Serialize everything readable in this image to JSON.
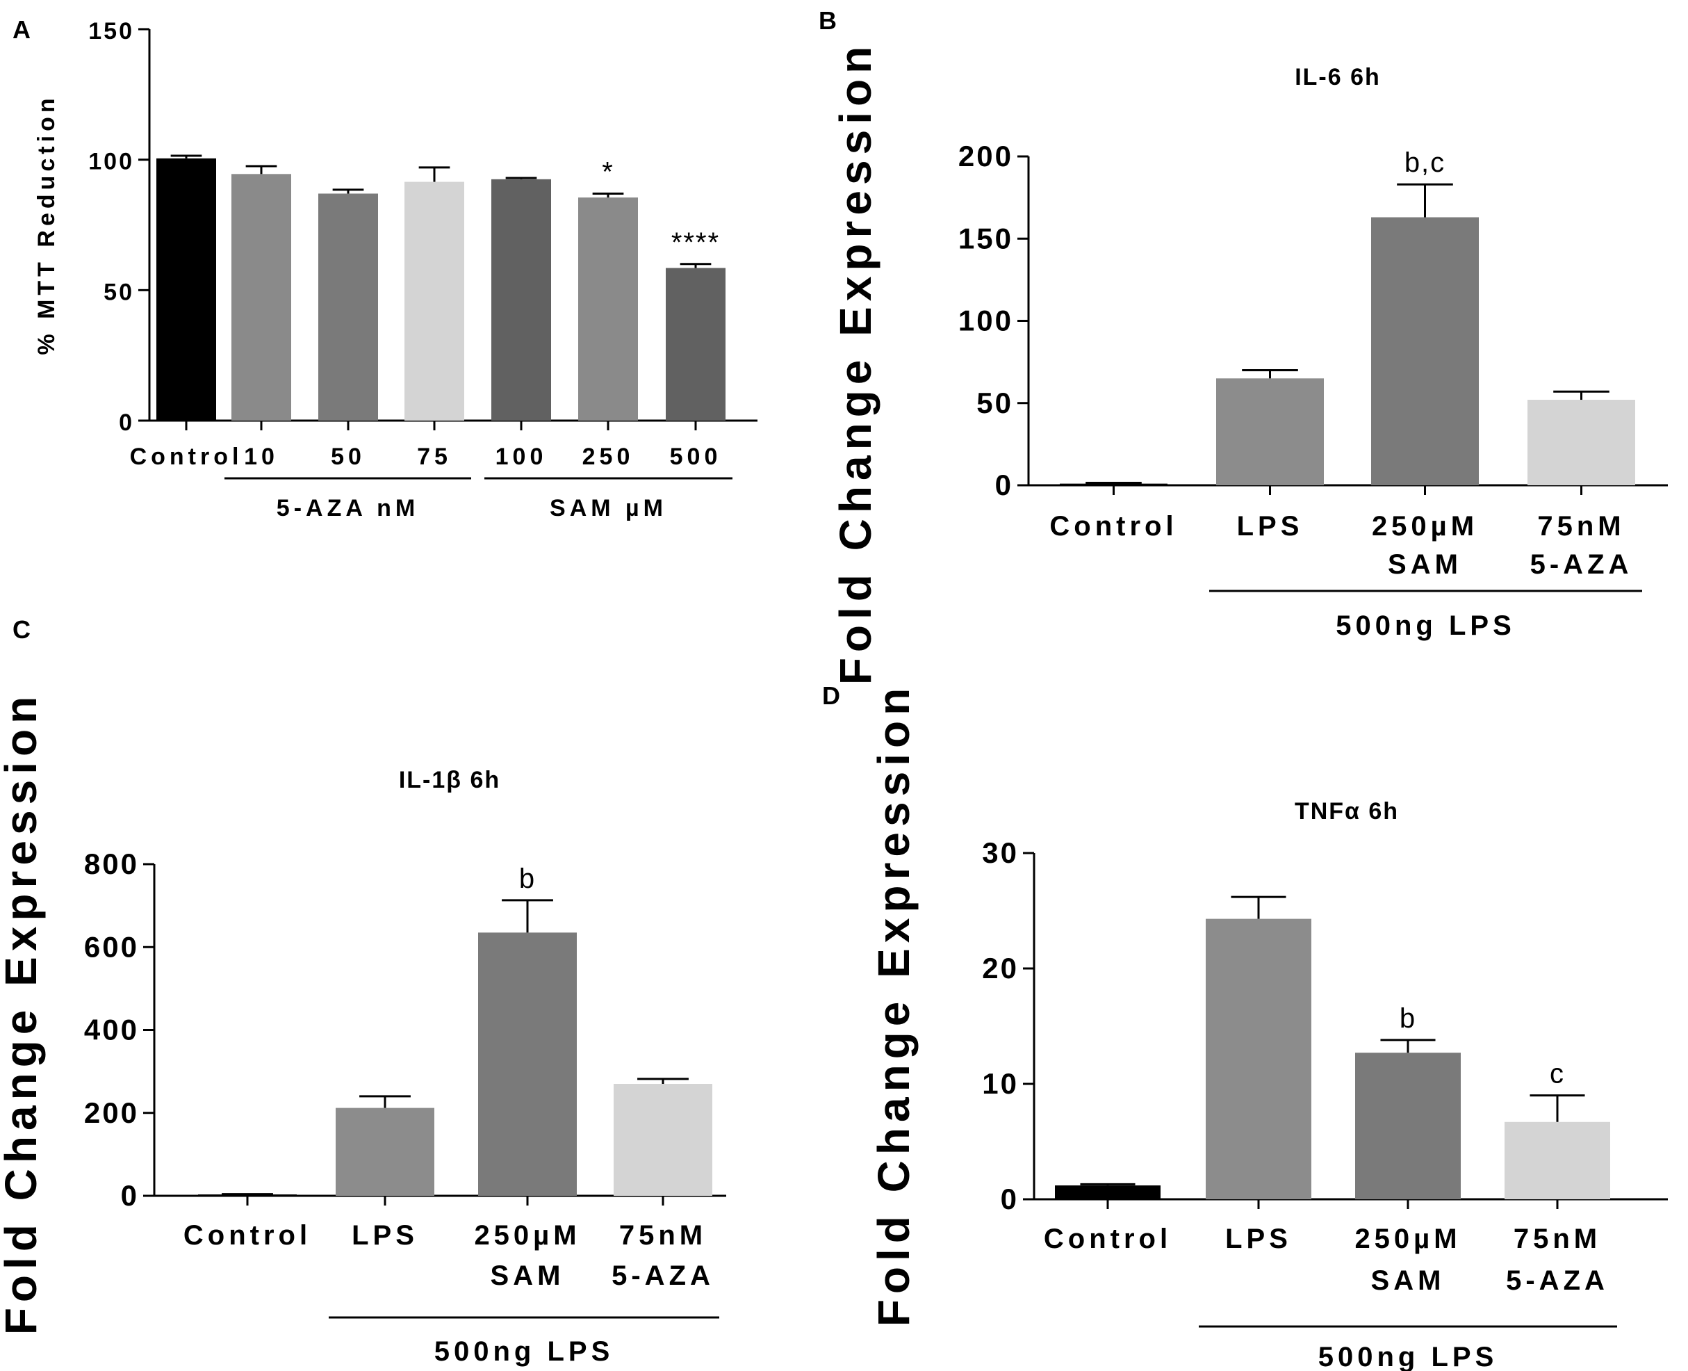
{
  "chart_data": [
    {
      "panel": "A",
      "type": "bar",
      "title": "",
      "xlabel": "",
      "ylabel": "% MTT Reduction",
      "ylim": [
        0,
        150
      ],
      "yticks": [
        "0",
        "50",
        "100",
        "150"
      ],
      "categories": [
        "Control",
        "10",
        "50",
        "75",
        "100",
        "250",
        "500"
      ],
      "values": [
        100.5,
        94.5,
        87,
        91.5,
        92.5,
        85.5,
        58.5
      ],
      "errors": [
        1,
        3,
        1.5,
        5.5,
        0.5,
        1.5,
        1.5
      ],
      "colors": [
        "#000000",
        "#8a8a8a",
        "#7a7a7a",
        "#d4d4d4",
        "#616161",
        "#8a8a8a",
        "#616161"
      ],
      "annotations": [
        "",
        "",
        "",
        "",
        "",
        "*",
        "****"
      ],
      "groups": [
        {
          "label": "5-AZA nM",
          "from": 1,
          "to": 3
        },
        {
          "label": "SAM µM",
          "from": 4,
          "to": 6
        }
      ]
    },
    {
      "panel": "B",
      "type": "bar",
      "title": "IL-6 6h",
      "xlabel": "",
      "ylabel": "Fold Change Expression",
      "ylim": [
        0,
        200
      ],
      "yticks": [
        "0",
        "50",
        "100",
        "150",
        "200"
      ],
      "categories": [
        [
          "Control"
        ],
        [
          "LPS"
        ],
        [
          "250µM",
          "SAM"
        ],
        [
          "75nM",
          "5-AZA"
        ]
      ],
      "values": [
        1,
        65,
        163,
        52
      ],
      "errors": [
        0.5,
        5,
        20,
        5
      ],
      "colors": [
        "#000000",
        "#8c8c8c",
        "#7a7a7a",
        "#d4d4d4"
      ],
      "annotations": [
        "",
        "",
        "b,c",
        ""
      ],
      "groups": [
        {
          "label": "500ng LPS",
          "from": 1,
          "to": 3
        }
      ]
    },
    {
      "panel": "C",
      "type": "bar",
      "title": "IL-1β 6h",
      "xlabel": "",
      "ylabel": "Fold Change Expression",
      "ylim": [
        0,
        800
      ],
      "yticks": [
        "0",
        "200",
        "400",
        "600",
        "800"
      ],
      "categories": [
        [
          "Control"
        ],
        [
          "LPS"
        ],
        [
          "250µM",
          "SAM"
        ],
        [
          "75nM",
          "5-AZA"
        ]
      ],
      "values": [
        3,
        212,
        635,
        270
      ],
      "errors": [
        1,
        28,
        78,
        12
      ],
      "colors": [
        "#000000",
        "#8c8c8c",
        "#7a7a7a",
        "#d4d4d4"
      ],
      "annotations": [
        "",
        "",
        "b",
        ""
      ],
      "groups": [
        {
          "label": "500ng LPS",
          "from": 1,
          "to": 3
        }
      ]
    },
    {
      "panel": "D",
      "type": "bar",
      "title": "TNFα 6h",
      "xlabel": "",
      "ylabel": "Fold Change Expression",
      "ylim": [
        0,
        30
      ],
      "yticks": [
        "0",
        "10",
        "20",
        "30"
      ],
      "categories": [
        [
          "Control"
        ],
        [
          "LPS"
        ],
        [
          "250µM",
          "SAM"
        ],
        [
          "75nM",
          "5-AZA"
        ]
      ],
      "values": [
        1.2,
        24.3,
        12.7,
        6.7
      ],
      "errors": [
        0.1,
        1.9,
        1.1,
        2.3
      ],
      "colors": [
        "#000000",
        "#8c8c8c",
        "#7a7a7a",
        "#d4d4d4"
      ],
      "annotations": [
        "",
        "",
        "b",
        "c"
      ],
      "groups": [
        {
          "label": "500ng LPS",
          "from": 1,
          "to": 3
        }
      ]
    }
  ]
}
